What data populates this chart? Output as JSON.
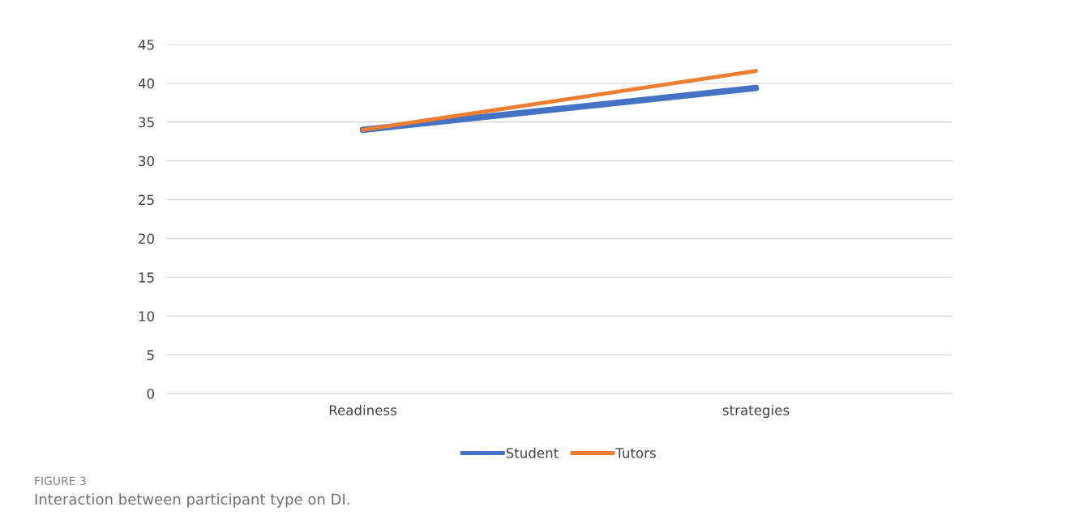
{
  "chart_data": {
    "type": "line",
    "categories": [
      "Readiness",
      "strategies"
    ],
    "series": [
      {
        "name": "Student",
        "color": "#4472c4",
        "values": [
          34.0,
          39.4
        ]
      },
      {
        "name": "Tutors",
        "color": "#ed7d31",
        "values": [
          34.0,
          41.6
        ]
      }
    ],
    "ylim": [
      0,
      45
    ],
    "yticks": [
      0,
      5,
      10,
      15,
      20,
      25,
      30,
      35,
      40,
      45
    ],
    "grid": "y",
    "legend": "bottom",
    "annotations": [
      "FIGURE 3",
      "Interaction between participant type on DI."
    ]
  }
}
